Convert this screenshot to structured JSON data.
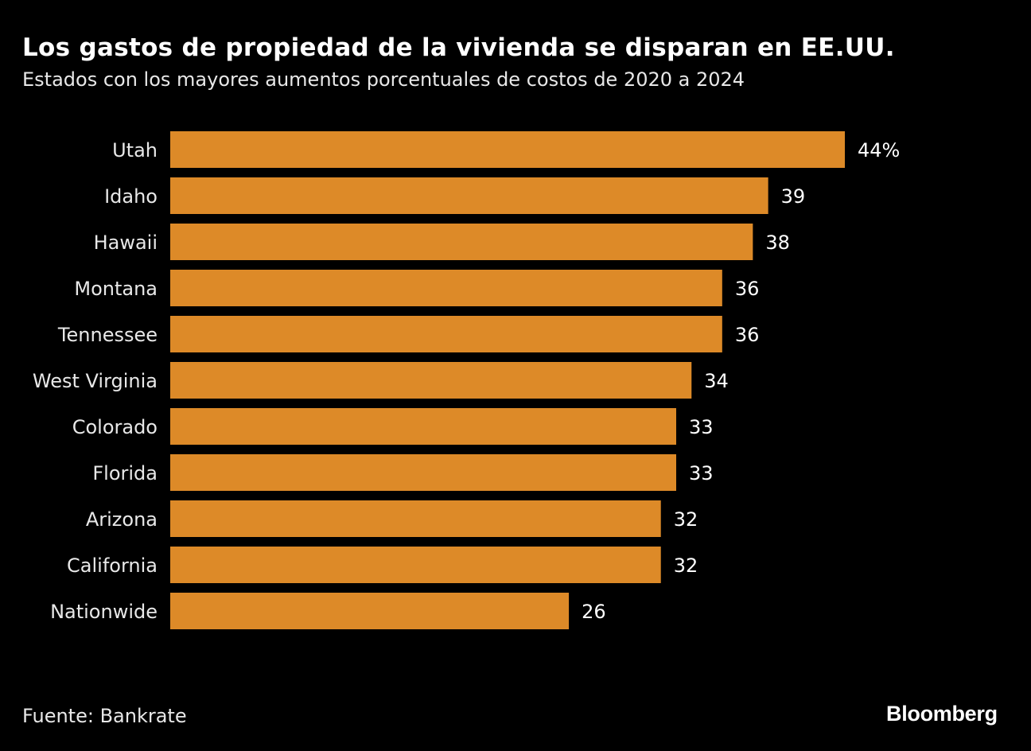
{
  "chart_data": {
    "type": "bar",
    "orientation": "horizontal",
    "title": "Los gastos de propiedad de la vivienda se disparan en EE.UU.",
    "subtitle": "Estados con los mayores aumentos porcentuales de costos de 2020 a 2024",
    "categories": [
      "Utah",
      "Idaho",
      "Hawaii",
      "Montana",
      "Tennessee",
      "West Virginia",
      "Colorado",
      "Florida",
      "Arizona",
      "California",
      "Nationwide"
    ],
    "values": [
      44,
      39,
      38,
      36,
      36,
      34,
      33,
      33,
      32,
      32,
      26
    ],
    "data_labels": [
      "44%",
      "39",
      "38",
      "36",
      "36",
      "34",
      "33",
      "33",
      "32",
      "32",
      "26"
    ],
    "unit": "%",
    "xlim": [
      0,
      44
    ],
    "grid": false,
    "bar_color": "#DD8A28",
    "background": "#000000",
    "source": "Fuente: Bankrate",
    "logo": "Bloomberg"
  }
}
